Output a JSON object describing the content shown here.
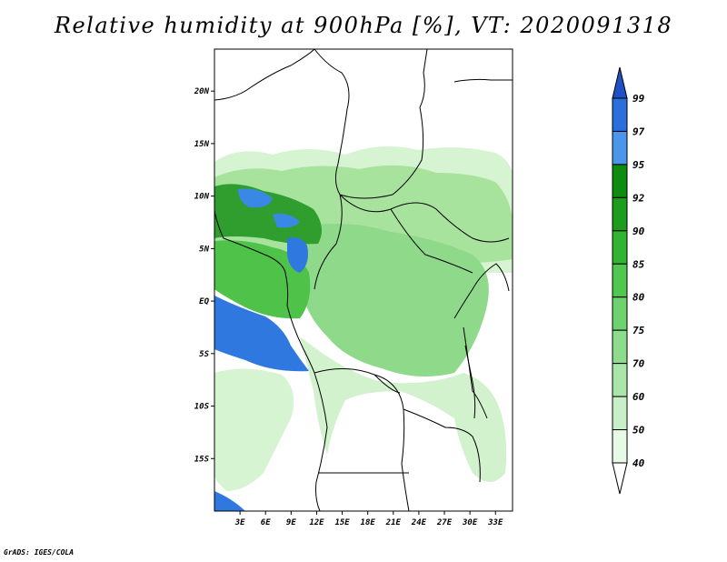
{
  "title": "Relative humidity at 900hPa [%], VT: 2020091318",
  "credit": "GrADS: IGES/COLA",
  "map": {
    "lat_labels": [
      "20N",
      "15N",
      "10N",
      "5N",
      "EQ",
      "5S",
      "10S",
      "15S"
    ],
    "lon_labels": [
      "3E",
      "6E",
      "9E",
      "12E",
      "15E",
      "18E",
      "21E",
      "24E",
      "27E",
      "30E",
      "33E"
    ],
    "extent": {
      "lon_min": 0,
      "lon_max": 35,
      "lat_min": -20,
      "lat_max": 24
    }
  },
  "colorbar": {
    "levels": [
      "40",
      "50",
      "60",
      "70",
      "75",
      "80",
      "85",
      "90",
      "92",
      "95",
      "97",
      "99"
    ],
    "colors": [
      "#ffffff",
      "#e6fae6",
      "#c8f0c8",
      "#aae6aa",
      "#8cdc8c",
      "#6ed26e",
      "#50c850",
      "#32b432",
      "#1e9c1e",
      "#0f8c0f",
      "#4b96eb",
      "#2a6fdb",
      "#1e50c8"
    ]
  },
  "fill_colors": {
    "ocean_high": "#2f78e0",
    "land_high": "#2a9e2a"
  }
}
